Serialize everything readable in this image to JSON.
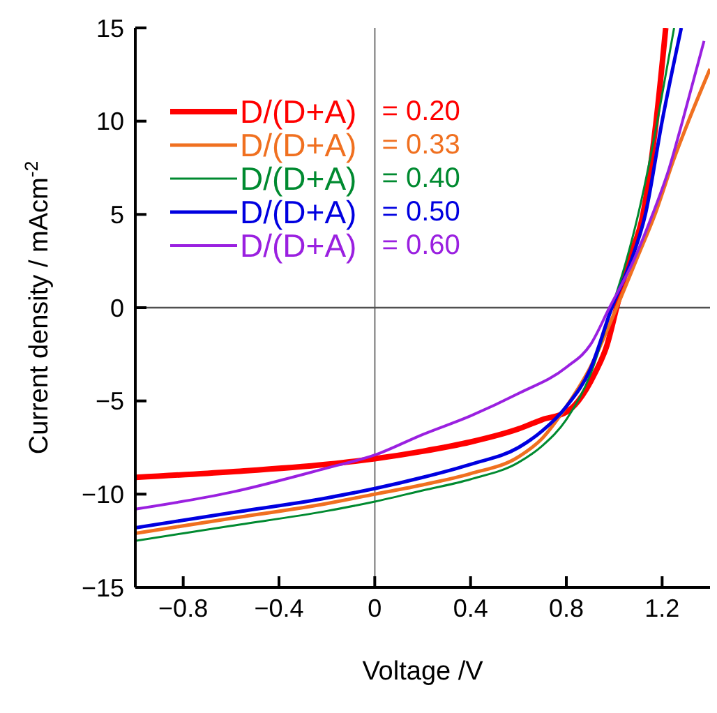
{
  "chart_data": {
    "type": "line",
    "xlabel": "Voltage /V",
    "ylabel": "Current density / mAcm$^{-2}$",
    "xlim": [
      -1,
      1.4
    ],
    "xticks": [
      {
        "value": -0.8,
        "label": "−0.8"
      },
      {
        "value": -0.4,
        "label": "−0.4"
      },
      0,
      0.4,
      0.8,
      1.2
    ],
    "ylim": [
      -15,
      15
    ],
    "yticks": [
      {
        "value": -15,
        "label": "−15"
      },
      {
        "value": -10,
        "label": "−10"
      },
      {
        "value": -5,
        "label": "−5"
      },
      0,
      5,
      10,
      15
    ],
    "grid": false,
    "legend": "top left",
    "marker": "none",
    "line_style": "solid",
    "ref_lines": [
      {
        "axis": "x",
        "value": 0,
        "color": "#8c8c8c"
      },
      {
        "axis": "y",
        "value": 0,
        "color": "#505050"
      }
    ],
    "series": [
      {
        "name": "D/(D+A) = 0.20",
        "color": "#ff0000",
        "x": [
          -1,
          -0.6,
          -0.2,
          0,
          0.2,
          0.4,
          0.6,
          0.7,
          0.8,
          0.85,
          0.92,
          0.97,
          1.01,
          1.06,
          1.12,
          1.175,
          1.215
        ],
        "values": [
          -9.1,
          -8.8,
          -8.4,
          -8.1,
          -7.7,
          -7.2,
          -6.5,
          -6.0,
          -5.6,
          -5,
          -3.5,
          -2,
          0,
          2.5,
          5,
          10,
          15
        ]
      },
      {
        "name": "D/(D+A) = 0.33",
        "color": "#f07020",
        "x": [
          -1,
          -0.6,
          -0.2,
          0,
          0.2,
          0.4,
          0.6,
          0.7,
          0.8,
          0.9,
          1.0,
          1.1,
          1.17,
          1.25,
          1.31,
          1.4
        ],
        "values": [
          -12.1,
          -11.3,
          -10.5,
          -10,
          -9.5,
          -8.9,
          -8,
          -7,
          -5.3,
          -3.2,
          -0.3,
          2.8,
          5,
          8,
          10,
          12.8
        ]
      },
      {
        "name": "D/(D+A) = 0.40",
        "color": "#008a30",
        "x": [
          -1,
          -0.6,
          -0.2,
          0,
          0.2,
          0.4,
          0.6,
          0.7,
          0.8,
          0.9,
          0.99,
          1.05,
          1.1,
          1.15,
          1.18,
          1.25
        ],
        "values": [
          -12.5,
          -11.7,
          -10.9,
          -10.4,
          -9.8,
          -9.2,
          -8.3,
          -7.4,
          -6,
          -3.6,
          0,
          2.5,
          5,
          8,
          10,
          15
        ]
      },
      {
        "name": "D/(D+A) = 0.50",
        "color": "#0000e0",
        "x": [
          -1,
          -0.6,
          -0.2,
          0,
          0.2,
          0.4,
          0.6,
          0.7,
          0.8,
          0.9,
          0.99,
          1.07,
          1.13,
          1.2,
          1.28
        ],
        "values": [
          -11.8,
          -11,
          -10.2,
          -9.7,
          -9.1,
          -8.4,
          -7.5,
          -6.6,
          -5.3,
          -3.3,
          0,
          2.5,
          5,
          10,
          15
        ]
      },
      {
        "name": "D/(D+A) = 0.60",
        "color": "#9a20e0",
        "x": [
          -1,
          -0.6,
          -0.2,
          0,
          0.2,
          0.4,
          0.6,
          0.8,
          0.9,
          0.98,
          1.08,
          1.16,
          1.23,
          1.285,
          1.375
        ],
        "values": [
          -10.8,
          -9.9,
          -8.6,
          -7.9,
          -6.8,
          -5.8,
          -4.6,
          -3.2,
          -2,
          0,
          2.5,
          5,
          7.5,
          10,
          14.3
        ]
      }
    ]
  }
}
